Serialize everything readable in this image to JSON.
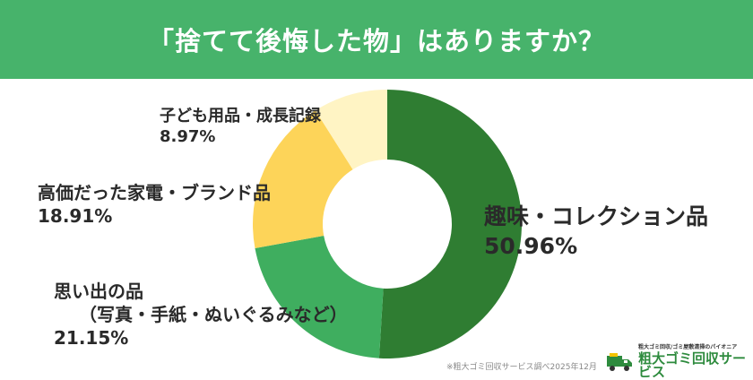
{
  "header": {
    "title": "「捨てて後悔した物」はありますか？"
  },
  "chart_data": {
    "type": "pie",
    "title": "「捨てて後悔した物」はありますか？",
    "start": "top",
    "direction": "clockwise",
    "donut": true,
    "categories": [
      "趣味・コレクション品",
      "思い出の品（写真・手紙・ぬいぐるみなど）",
      "高価だった家電・ブランド品",
      "子ども用品・成長記録"
    ],
    "values": [
      50.96,
      21.15,
      18.91,
      8.97
    ],
    "colors": [
      "#2f7d32",
      "#3fae5f",
      "#fdd459",
      "#fff4c4"
    ]
  },
  "labels": {
    "hobby": {
      "name": "趣味・コレクション品",
      "pct": "50.96%"
    },
    "memories": {
      "name": "思い出の品",
      "sub": "（写真・手紙・ぬいぐるみなど）",
      "pct": "21.15%"
    },
    "appliance": {
      "name": "高価だった家電・ブランド品",
      "pct": "18.91%"
    },
    "kids": {
      "name": "子ども用品・成長記録",
      "pct": "8.97%"
    }
  },
  "footer": {
    "source": "※粗大ゴミ回収サービス調べ2025年12月",
    "logo_tagline": "粗大ゴミ回収/ゴミ屋敷清掃のパイオニア",
    "logo_name": "粗大ゴミ回収サービス"
  },
  "icons": {
    "logo": "truck-icon"
  }
}
